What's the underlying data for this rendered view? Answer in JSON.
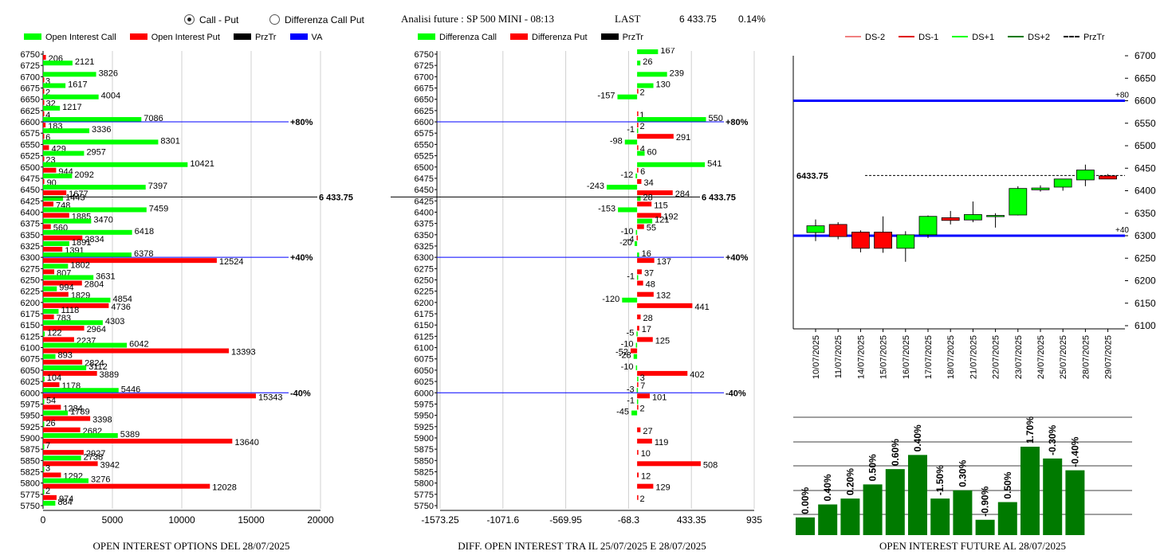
{
  "header": {
    "radio_call_put": "Call - Put",
    "radio_diff": "Differenza Call Put",
    "title": "Analisi future : SP 500 MINI - 08:13",
    "last_label": "LAST",
    "last_value": "6 433.75",
    "last_change": "0.14%"
  },
  "colors": {
    "call": "#00ff00",
    "put": "#ff0000",
    "przTr": "#000000",
    "va": "#0000ff",
    "darkGreen": "#007a00"
  },
  "panel1": {
    "legend": [
      "Open Interest Call",
      "Open Interest Put",
      "PrzTr",
      "VA"
    ],
    "footer": "OPEN INTEREST OPTIONS DEL 28/07/2025"
  },
  "panel2": {
    "legend": [
      "Differenza Call",
      "Differenza Put",
      "PrzTr"
    ],
    "footer": "DIFF. OPEN INTEREST TRA IL 25/07/2025 E 28/07/2025"
  },
  "panel3": {
    "legend": [
      "DS-2",
      "DS-1",
      "DS+1",
      "DS+2",
      "PrzTr"
    ],
    "footer": "OPEN INTEREST FUTURE AL 28/07/2025"
  },
  "chart_data": [
    {
      "type": "bar",
      "orientation": "horizontal",
      "categories": [
        6750,
        6725,
        6700,
        6675,
        6650,
        6625,
        6600,
        6575,
        6550,
        6525,
        6500,
        6475,
        6450,
        6425,
        6400,
        6375,
        6350,
        6325,
        6300,
        6275,
        6250,
        6225,
        6200,
        6175,
        6150,
        6125,
        6100,
        6075,
        6050,
        6025,
        6000,
        5975,
        5950,
        5925,
        5900,
        5875,
        5850,
        5825,
        5800,
        5775,
        5750
      ],
      "series": [
        {
          "name": "Open Interest Call",
          "values": [
            0,
            2121,
            3826,
            1617,
            4004,
            1217,
            7086,
            3336,
            8301,
            2957,
            10421,
            2092,
            7397,
            1443,
            7459,
            3470,
            6418,
            1891,
            6378,
            1802,
            3631,
            994,
            4854,
            1118,
            4303,
            122,
            6042,
            893,
            3112,
            104,
            5446,
            54,
            1789,
            26,
            5389,
            7,
            2738,
            3,
            3276,
            2,
            884
          ]
        },
        {
          "name": "Open Interest Put",
          "values": [
            206,
            0,
            3,
            2,
            32,
            4,
            183,
            6,
            429,
            23,
            944,
            90,
            1677,
            748,
            1885,
            560,
            2834,
            1391,
            12524,
            807,
            2804,
            1829,
            4736,
            783,
            2964,
            2237,
            13393,
            2824,
            3889,
            1178,
            15343,
            1284,
            3398,
            2682,
            13640,
            2927,
            3942,
            1292,
            12028,
            974,
            0
          ]
        }
      ],
      "xticks": [
        0,
        5000,
        10000,
        15000,
        20000
      ],
      "xlim": [
        0,
        20000
      ],
      "price_line": {
        "value": 6433.75,
        "label": "6 433.75"
      },
      "va_lines": [
        {
          "strike": 6600,
          "label": "+80%"
        },
        {
          "strike": 6300,
          "label": "+40%"
        },
        {
          "strike": 6000,
          "label": "-40%"
        }
      ]
    },
    {
      "type": "bar",
      "orientation": "horizontal",
      "categories": [
        6750,
        6725,
        6700,
        6675,
        6650,
        6625,
        6600,
        6575,
        6550,
        6525,
        6500,
        6475,
        6450,
        6425,
        6400,
        6375,
        6350,
        6325,
        6300,
        6275,
        6250,
        6225,
        6200,
        6175,
        6150,
        6125,
        6100,
        6075,
        6050,
        6025,
        6000,
        5975,
        5950,
        5925,
        5900,
        5875,
        5850,
        5825,
        5800,
        5775,
        5750
      ],
      "series": [
        {
          "name": "Differenza Call",
          "values": [
            167,
            26,
            239,
            130,
            -157,
            0,
            550,
            -1,
            -98,
            60,
            541,
            -12,
            -243,
            28,
            -153,
            121,
            -10,
            -20,
            16,
            0,
            -1,
            0,
            -120,
            0,
            0,
            -5,
            -10,
            -28,
            -10,
            3,
            -3,
            -1,
            -45,
            0,
            0,
            0,
            0,
            0,
            0,
            0,
            0
          ]
        },
        {
          "name": "Differenza Put",
          "values": [
            0,
            0,
            0,
            2,
            0,
            1,
            2,
            291,
            4,
            0,
            6,
            34,
            284,
            115,
            192,
            55,
            -4,
            0,
            137,
            37,
            48,
            132,
            441,
            28,
            17,
            125,
            -52,
            0,
            402,
            7,
            101,
            2,
            0,
            27,
            119,
            10,
            508,
            12,
            129,
            2,
            0
          ]
        }
      ],
      "xticks": [
        -1573.25,
        -1071.6,
        -569.95,
        -68.3,
        433.35,
        935
      ],
      "xtick_labels": [
        "-1573.25",
        "-1071.6",
        "-569.95",
        "-68.3",
        "433.35",
        "935"
      ],
      "xlim": [
        -1573.25,
        935
      ],
      "price_line": {
        "value": 6433.75,
        "label": "6 433.75"
      },
      "va_lines": [
        {
          "strike": 6600,
          "label": "+80%"
        },
        {
          "strike": 6300,
          "label": "+40%"
        },
        {
          "strike": 6000,
          "label": "-40%"
        }
      ]
    },
    {
      "type": "candlestick",
      "dates": [
        "10/07/2025",
        "11/07/2025",
        "14/07/2025",
        "15/07/2025",
        "16/07/2025",
        "17/07/2025",
        "18/07/2025",
        "21/07/2025",
        "22/07/2025",
        "23/07/2025",
        "24/07/2025",
        "25/07/2025",
        "28/07/2025",
        "29/07/2025"
      ],
      "ohlc": [
        [
          6307,
          6336,
          6288,
          6322
        ],
        [
          6325,
          6330,
          6292,
          6298
        ],
        [
          6308,
          6312,
          6263,
          6272
        ],
        [
          6308,
          6343,
          6262,
          6272
        ],
        [
          6272,
          6310,
          6242,
          6302
        ],
        [
          6302,
          6345,
          6295,
          6343
        ],
        [
          6340,
          6355,
          6325,
          6334
        ],
        [
          6335,
          6376,
          6330,
          6347
        ],
        [
          6345,
          6350,
          6318,
          6345
        ],
        [
          6346,
          6410,
          6345,
          6405
        ],
        [
          6402,
          6412,
          6398,
          6406
        ],
        [
          6408,
          6425,
          6400,
          6426
        ],
        [
          6424,
          6458,
          6410,
          6446
        ],
        [
          6433,
          6437,
          6428,
          6426
        ]
      ],
      "yticks": [
        6100,
        6150,
        6200,
        6250,
        6300,
        6350,
        6400,
        6450,
        6500,
        6550,
        6600,
        6650,
        6700
      ],
      "ylim": [
        6100,
        6700
      ],
      "price_line": {
        "value": 6433.75,
        "label": "6433.75"
      },
      "levels": [
        {
          "value": 6600,
          "label": "+80"
        },
        {
          "value": 6300,
          "label": "+40"
        }
      ]
    },
    {
      "type": "bar",
      "values_label": [
        "0.00%",
        "0.40%",
        "0.20%",
        "0.50%",
        "0.60%",
        "0.40%",
        "-1.50%",
        "0.30%",
        "-0.90%",
        "0.50%",
        "1.70%",
        "-0.30%",
        "-0.40%"
      ],
      "values": [
        15,
        26,
        31,
        43,
        56,
        68,
        31,
        38,
        13,
        28,
        75,
        65,
        55
      ]
    }
  ]
}
